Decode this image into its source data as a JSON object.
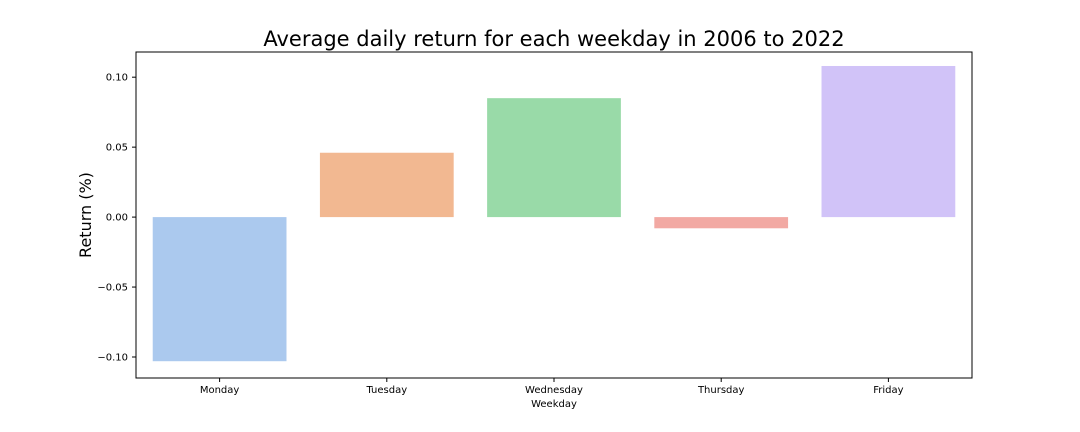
{
  "chart_data": {
    "type": "bar",
    "title": "Average daily return for each weekday in 2006 to 2022",
    "xlabel": "Weekday",
    "ylabel": "Return (%)",
    "categories": [
      "Monday",
      "Tuesday",
      "Wednesday",
      "Thursday",
      "Friday"
    ],
    "values": [
      -0.103,
      0.046,
      0.085,
      -0.008,
      0.108
    ],
    "colors": [
      "#abc9ee",
      "#f2b891",
      "#99daa8",
      "#f2a9a3",
      "#d1c3f8"
    ],
    "ylim": [
      -0.115,
      0.118
    ],
    "yticks": [
      -0.1,
      -0.05,
      0.0,
      0.05,
      0.1
    ],
    "ytick_labels": [
      "−0.10",
      "−0.05",
      "0.00",
      "0.05",
      "0.10"
    ],
    "grid": false,
    "legend": "none"
  }
}
